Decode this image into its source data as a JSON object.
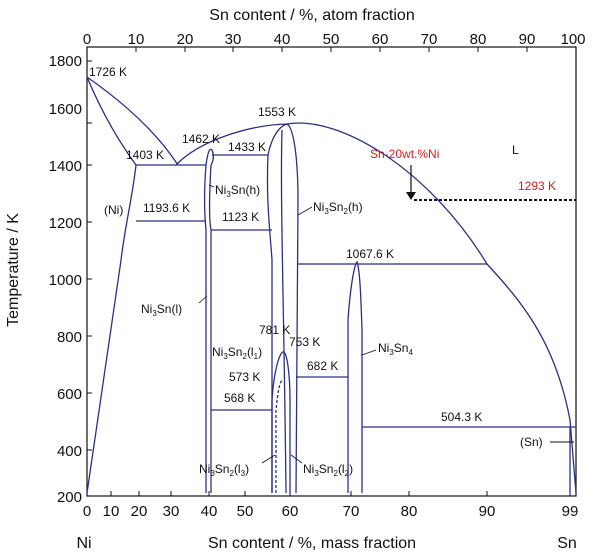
{
  "diagram": {
    "title_top": "Sn content / %, atom fraction",
    "title_bottom": "Sn content / %, mass fraction",
    "ylabel": "Temperature / K",
    "left_element": "Ni",
    "right_element": "Sn",
    "top_ticks": [
      "0",
      "10",
      "20",
      "30",
      "40",
      "50",
      "60",
      "70",
      "80",
      "90",
      "100"
    ],
    "bottom_ticks": [
      "0",
      "10",
      "20",
      "30",
      "40",
      "50",
      "60",
      "70",
      "80",
      "90",
      "99"
    ],
    "y_ticks": [
      "1800",
      "1600",
      "1400",
      "1200",
      "1000",
      "800",
      "600",
      "400",
      "200"
    ],
    "labels": {
      "t1726": "1726 K",
      "t1553": "1553 K",
      "t1462": "1462 K",
      "t1433": "1433 K",
      "t1403": "1403 K",
      "t1193": "1193.6 K",
      "t1123": "1123 K",
      "t1067": "1067.6 K",
      "t781": "781 K",
      "t753": "753 K",
      "t682": "682 K",
      "t573": "573 K",
      "t568": "568 K",
      "t504": "504.3 K",
      "ni_phase": "(Ni)",
      "sn_phase": "(Sn)",
      "liquid": "L",
      "ni3sn_h_a": "Ni",
      "ni3sn_h_sub": "3",
      "ni3sn_h_b": "Sn(h)",
      "ni3sn_l_a": "Ni",
      "ni3sn_l_sub": "3",
      "ni3sn_l_b": "Sn(l)",
      "ni3sn2_h_a": "Ni",
      "ni3sn2_h_sub": "3",
      "ni3sn2_h_b": "Sn",
      "ni3sn2_h_sub2": "2",
      "ni3sn2_h_c": "(h)",
      "ni3sn2_l1_a": "Ni",
      "ni3sn2_l1_sub": "3",
      "ni3sn2_l1_b": "Sn",
      "ni3sn2_l1_sub2": "2",
      "ni3sn2_l1_c": "(l",
      "ni3sn2_l1_sub3": "1",
      "ni3sn2_l1_d": ")",
      "ni3sn2_l2_a": "Ni",
      "ni3sn2_l2_sub": "3",
      "ni3sn2_l2_b": "Sn",
      "ni3sn2_l2_sub2": "2",
      "ni3sn2_l2_c": "(l",
      "ni3sn2_l2_sub3": "2",
      "ni3sn2_l2_d": ")",
      "ni3sn2_l3_a": "Ni",
      "ni3sn2_l3_sub": "3",
      "ni3sn2_l3_b": "Sn",
      "ni3sn2_l3_sub2": "2",
      "ni3sn2_l3_c": "(l",
      "ni3sn2_l3_sub3": "3",
      "ni3sn2_l3_d": ")",
      "ni3sn4_a": "Ni",
      "ni3sn4_sub": "3",
      "ni3sn4_b": "Sn",
      "ni3sn4_sub2": "4",
      "alloy": "Sn-20wt.%Ni",
      "t1293": "1293 K"
    },
    "colors": {
      "phase_line": "#2d2f86",
      "annotation": "#d11f1f",
      "axis": "#111111"
    }
  }
}
